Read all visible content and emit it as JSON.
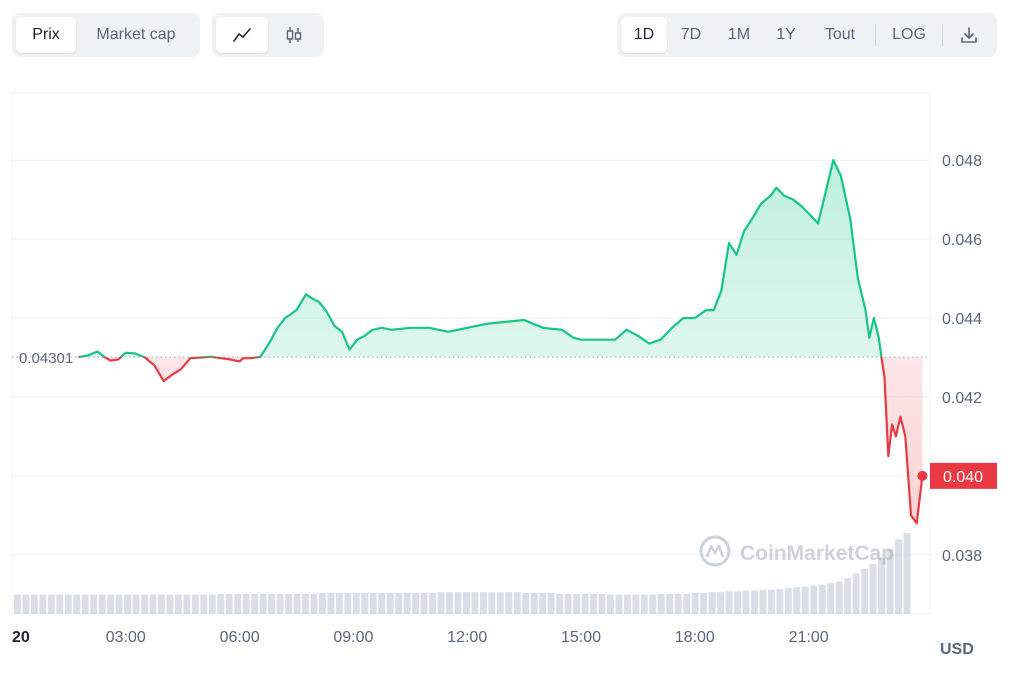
{
  "toolbar": {
    "metric_tabs": [
      {
        "label": "Prix",
        "active": true
      },
      {
        "label": "Market cap",
        "active": false
      }
    ],
    "chart_type_icons": [
      {
        "icon": "line-chart-icon",
        "active": true
      },
      {
        "icon": "candlestick-icon",
        "active": false
      }
    ],
    "ranges": [
      {
        "label": "1D",
        "active": true
      },
      {
        "label": "7D",
        "active": false
      },
      {
        "label": "1M",
        "active": false
      },
      {
        "label": "1Y",
        "active": false
      },
      {
        "label": "Tout",
        "active": false
      }
    ],
    "log_label": "LOG",
    "download_icon": "download-icon"
  },
  "colors": {
    "up": "#16c784",
    "down": "#ea3943",
    "grid": "#eff2f5",
    "text": "#58667e"
  },
  "watermark": "CoinMarketCap",
  "chart_data": {
    "type": "line",
    "title": "",
    "reference_value": 0.04301,
    "reference_label": "0.04301",
    "current_value": 0.04,
    "current_label": "0.040",
    "ylim": [
      0.0365,
      0.0497
    ],
    "y_ticks": [
      0.048,
      0.046,
      0.044,
      0.042,
      0.04,
      0.038
    ],
    "y_tick_labels": [
      "0.048",
      "0.046",
      "0.044",
      "0.042",
      "0.040",
      "0.038"
    ],
    "y_unit": "USD",
    "xlim": [
      0,
      24.2
    ],
    "x_ticks": [
      0,
      3,
      6,
      9,
      12,
      15,
      18,
      21
    ],
    "x_tick_labels": [
      "20",
      "03:00",
      "06:00",
      "09:00",
      "12:00",
      "15:00",
      "18:00",
      "21:00"
    ],
    "grid": true,
    "series": [
      {
        "points": [
          [
            1.75,
            0.04301
          ],
          [
            2.0,
            0.04305
          ],
          [
            2.25,
            0.04315
          ],
          [
            2.45,
            0.043
          ],
          [
            2.6,
            0.04292
          ],
          [
            2.8,
            0.04295
          ],
          [
            3.0,
            0.04312
          ],
          [
            3.25,
            0.0431
          ],
          [
            3.5,
            0.043
          ],
          [
            3.75,
            0.0428
          ],
          [
            4.0,
            0.0424
          ],
          [
            4.2,
            0.04255
          ],
          [
            4.45,
            0.0427
          ],
          [
            4.7,
            0.04298
          ],
          [
            5.0,
            0.043
          ],
          [
            5.25,
            0.04302
          ],
          [
            5.5,
            0.04298
          ],
          [
            5.75,
            0.04295
          ],
          [
            6.0,
            0.0429
          ],
          [
            6.1,
            0.04298
          ],
          [
            6.3,
            0.04298
          ],
          [
            6.55,
            0.04302
          ],
          [
            6.8,
            0.0434
          ],
          [
            7.0,
            0.04375
          ],
          [
            7.2,
            0.044
          ],
          [
            7.5,
            0.0442
          ],
          [
            7.75,
            0.0446
          ],
          [
            7.9,
            0.0445
          ],
          [
            8.1,
            0.0444
          ],
          [
            8.3,
            0.04415
          ],
          [
            8.5,
            0.0438
          ],
          [
            8.7,
            0.04365
          ],
          [
            8.9,
            0.0432
          ],
          [
            9.1,
            0.04345
          ],
          [
            9.3,
            0.04355
          ],
          [
            9.5,
            0.0437
          ],
          [
            9.75,
            0.04375
          ],
          [
            10.0,
            0.0437
          ],
          [
            10.5,
            0.04375
          ],
          [
            11.0,
            0.04375
          ],
          [
            11.5,
            0.04365
          ],
          [
            12.0,
            0.04375
          ],
          [
            12.5,
            0.04385
          ],
          [
            13.0,
            0.0439
          ],
          [
            13.5,
            0.04395
          ],
          [
            14.0,
            0.04375
          ],
          [
            14.5,
            0.0437
          ],
          [
            14.8,
            0.0435
          ],
          [
            15.0,
            0.04345
          ],
          [
            15.5,
            0.04345
          ],
          [
            15.9,
            0.04345
          ],
          [
            16.2,
            0.0437
          ],
          [
            16.5,
            0.04355
          ],
          [
            16.8,
            0.04335
          ],
          [
            17.1,
            0.04345
          ],
          [
            17.4,
            0.04375
          ],
          [
            17.7,
            0.044
          ],
          [
            18.0,
            0.044
          ],
          [
            18.3,
            0.0442
          ],
          [
            18.5,
            0.0442
          ],
          [
            18.7,
            0.0447
          ],
          [
            18.9,
            0.0459
          ],
          [
            19.1,
            0.0456
          ],
          [
            19.3,
            0.0462
          ],
          [
            19.5,
            0.0465
          ],
          [
            19.75,
            0.0469
          ],
          [
            20.0,
            0.0471
          ],
          [
            20.15,
            0.0473
          ],
          [
            20.35,
            0.0471
          ],
          [
            20.6,
            0.047
          ],
          [
            20.85,
            0.0468
          ],
          [
            21.05,
            0.0466
          ],
          [
            21.25,
            0.0464
          ],
          [
            21.45,
            0.0472
          ],
          [
            21.65,
            0.048
          ],
          [
            21.85,
            0.0476
          ],
          [
            22.1,
            0.0465
          ],
          [
            22.3,
            0.045
          ],
          [
            22.5,
            0.0442
          ],
          [
            22.6,
            0.0435
          ],
          [
            22.72,
            0.044
          ],
          [
            22.85,
            0.0435
          ],
          [
            22.92,
            0.04301
          ],
          [
            23.0,
            0.0425
          ],
          [
            23.1,
            0.0405
          ],
          [
            23.2,
            0.0413
          ],
          [
            23.3,
            0.041
          ],
          [
            23.42,
            0.0415
          ],
          [
            23.55,
            0.041
          ],
          [
            23.7,
            0.039
          ],
          [
            23.85,
            0.0388
          ],
          [
            24.0,
            0.04
          ]
        ]
      }
    ],
    "volume": {
      "ylim": [
        0,
        1
      ],
      "values": [
        0.24,
        0.24,
        0.24,
        0.24,
        0.24,
        0.24,
        0.24,
        0.24,
        0.24,
        0.24,
        0.24,
        0.24,
        0.24,
        0.24,
        0.24,
        0.24,
        0.24,
        0.24,
        0.24,
        0.24,
        0.24,
        0.24,
        0.24,
        0.24,
        0.25,
        0.25,
        0.25,
        0.25,
        0.25,
        0.25,
        0.25,
        0.25,
        0.25,
        0.25,
        0.25,
        0.25,
        0.26,
        0.26,
        0.26,
        0.26,
        0.26,
        0.26,
        0.26,
        0.26,
        0.26,
        0.26,
        0.26,
        0.26,
        0.26,
        0.26,
        0.27,
        0.27,
        0.27,
        0.27,
        0.27,
        0.27,
        0.27,
        0.27,
        0.27,
        0.27,
        0.26,
        0.26,
        0.26,
        0.26,
        0.25,
        0.25,
        0.25,
        0.25,
        0.25,
        0.25,
        0.24,
        0.24,
        0.24,
        0.24,
        0.24,
        0.24,
        0.25,
        0.25,
        0.25,
        0.25,
        0.26,
        0.26,
        0.27,
        0.27,
        0.28,
        0.28,
        0.29,
        0.29,
        0.3,
        0.3,
        0.31,
        0.32,
        0.33,
        0.34,
        0.35,
        0.36,
        0.38,
        0.4,
        0.44,
        0.5,
        0.56,
        0.62,
        0.7,
        0.8,
        0.92,
        1.0
      ]
    }
  }
}
